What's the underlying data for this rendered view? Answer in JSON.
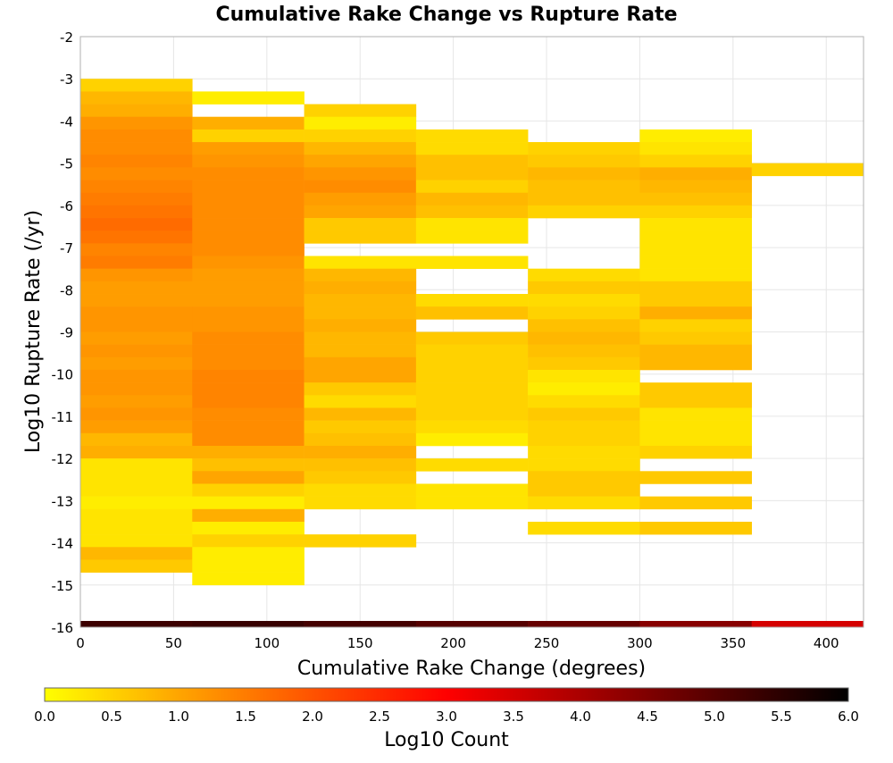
{
  "chart_data": {
    "type": "heatmap",
    "title": "Cumulative Rake Change vs Rupture Rate",
    "xlabel": "Cumulative Rake Change (degrees)",
    "ylabel": "Log10 Rupture Rate (/yr)",
    "xlim": [
      0,
      420
    ],
    "ylim": [
      -16,
      -2
    ],
    "x_ticks": [
      0,
      50,
      100,
      150,
      200,
      250,
      300,
      350,
      400
    ],
    "y_ticks": [
      -2,
      -3,
      -4,
      -5,
      -6,
      -7,
      -8,
      -9,
      -10,
      -11,
      -12,
      -13,
      -14,
      -15,
      -16
    ],
    "grid": true,
    "x_bin_width": 60,
    "y_bin_height": 0.3,
    "value_label": "Log10 Count",
    "colorbar": {
      "label": "Log10 Count",
      "min": 0.0,
      "max": 6.0,
      "ticks": [
        "0.0",
        "0.5",
        "1.0",
        "1.5",
        "2.0",
        "2.5",
        "3.0",
        "3.5",
        "4.0",
        "4.5",
        "5.0",
        "5.5",
        "6.0"
      ],
      "colors": [
        "#ffff00",
        "#ffa500",
        "#ff0000",
        "#000000"
      ],
      "placement": "bottom"
    },
    "columns": [
      {
        "x_start": 0,
        "bins": [
          {
            "y_start": -3.3,
            "value": 0.5
          },
          {
            "y_start": -3.6,
            "value": 0.8
          },
          {
            "y_start": -3.9,
            "value": 0.9
          },
          {
            "y_start": -4.2,
            "value": 1.2
          },
          {
            "y_start": -4.5,
            "value": 1.3
          },
          {
            "y_start": -4.8,
            "value": 1.3
          },
          {
            "y_start": -5.1,
            "value": 1.4
          },
          {
            "y_start": -5.4,
            "value": 1.3
          },
          {
            "y_start": -5.7,
            "value": 1.4
          },
          {
            "y_start": -6.0,
            "value": 1.5
          },
          {
            "y_start": -6.3,
            "value": 1.6
          },
          {
            "y_start": -6.6,
            "value": 1.7
          },
          {
            "y_start": -6.9,
            "value": 1.6
          },
          {
            "y_start": -7.2,
            "value": 1.4
          },
          {
            "y_start": -7.5,
            "value": 1.5
          },
          {
            "y_start": -7.8,
            "value": 1.2
          },
          {
            "y_start": -8.1,
            "value": 1.1
          },
          {
            "y_start": -8.4,
            "value": 1.1
          },
          {
            "y_start": -8.7,
            "value": 1.2
          },
          {
            "y_start": -9.0,
            "value": 1.2
          },
          {
            "y_start": -9.3,
            "value": 1.1
          },
          {
            "y_start": -9.6,
            "value": 1.2
          },
          {
            "y_start": -9.9,
            "value": 1.1
          },
          {
            "y_start": -10.2,
            "value": 1.2
          },
          {
            "y_start": -10.5,
            "value": 1.2
          },
          {
            "y_start": -10.8,
            "value": 1.1
          },
          {
            "y_start": -11.1,
            "value": 1.2
          },
          {
            "y_start": -11.4,
            "value": 1.1
          },
          {
            "y_start": -11.7,
            "value": 0.8
          },
          {
            "y_start": -12.0,
            "value": 0.9
          },
          {
            "y_start": -12.3,
            "value": 0.3
          },
          {
            "y_start": -12.6,
            "value": 0.3
          },
          {
            "y_start": -12.9,
            "value": 0.3
          },
          {
            "y_start": -13.2,
            "value": 0.2
          },
          {
            "y_start": -13.5,
            "value": 0.3
          },
          {
            "y_start": -13.8,
            "value": 0.3
          },
          {
            "y_start": -14.1,
            "value": 0.3
          },
          {
            "y_start": -14.4,
            "value": 0.8
          },
          {
            "y_start": -14.7,
            "value": 0.6
          }
        ]
      },
      {
        "x_start": 60,
        "bins": [
          {
            "y_start": -3.6,
            "value": 0.2
          },
          {
            "y_start": -4.2,
            "value": 0.9
          },
          {
            "y_start": -4.5,
            "value": 0.5
          },
          {
            "y_start": -4.8,
            "value": 1.1
          },
          {
            "y_start": -5.1,
            "value": 1.2
          },
          {
            "y_start": -5.4,
            "value": 1.3
          },
          {
            "y_start": -5.7,
            "value": 1.3
          },
          {
            "y_start": -6.0,
            "value": 1.3
          },
          {
            "y_start": -6.3,
            "value": 1.3
          },
          {
            "y_start": -6.6,
            "value": 1.3
          },
          {
            "y_start": -6.9,
            "value": 1.3
          },
          {
            "y_start": -7.2,
            "value": 1.3
          },
          {
            "y_start": -7.5,
            "value": 1.2
          },
          {
            "y_start": -7.8,
            "value": 1.1
          },
          {
            "y_start": -8.1,
            "value": 1.1
          },
          {
            "y_start": -8.4,
            "value": 1.1
          },
          {
            "y_start": -8.7,
            "value": 1.2
          },
          {
            "y_start": -9.0,
            "value": 1.2
          },
          {
            "y_start": -9.3,
            "value": 1.3
          },
          {
            "y_start": -9.6,
            "value": 1.3
          },
          {
            "y_start": -9.9,
            "value": 1.3
          },
          {
            "y_start": -10.2,
            "value": 1.4
          },
          {
            "y_start": -10.5,
            "value": 1.4
          },
          {
            "y_start": -10.8,
            "value": 1.4
          },
          {
            "y_start": -11.1,
            "value": 1.3
          },
          {
            "y_start": -11.4,
            "value": 1.3
          },
          {
            "y_start": -11.7,
            "value": 1.3
          },
          {
            "y_start": -12.0,
            "value": 0.9
          },
          {
            "y_start": -12.3,
            "value": 0.7
          },
          {
            "y_start": -12.6,
            "value": 1.0
          },
          {
            "y_start": -12.9,
            "value": 0.5
          },
          {
            "y_start": -13.2,
            "value": 0.2
          },
          {
            "y_start": -13.5,
            "value": 0.9
          },
          {
            "y_start": -13.8,
            "value": 0.2
          },
          {
            "y_start": -14.1,
            "value": 0.5
          },
          {
            "y_start": -14.4,
            "value": 0.2
          },
          {
            "y_start": -14.7,
            "value": 0.2
          },
          {
            "y_start": -15.0,
            "value": 0.2
          }
        ]
      },
      {
        "x_start": 120,
        "bins": [
          {
            "y_start": -3.9,
            "value": 0.5
          },
          {
            "y_start": -4.2,
            "value": 0.2
          },
          {
            "y_start": -4.5,
            "value": 0.5
          },
          {
            "y_start": -4.8,
            "value": 0.8
          },
          {
            "y_start": -5.1,
            "value": 1.0
          },
          {
            "y_start": -5.4,
            "value": 1.2
          },
          {
            "y_start": -5.7,
            "value": 1.3
          },
          {
            "y_start": -6.0,
            "value": 1.1
          },
          {
            "y_start": -6.3,
            "value": 1.0
          },
          {
            "y_start": -6.6,
            "value": 0.6
          },
          {
            "y_start": -6.9,
            "value": 0.6
          },
          {
            "y_start": -7.5,
            "value": 0.3
          },
          {
            "y_start": -7.8,
            "value": 0.8
          },
          {
            "y_start": -8.1,
            "value": 0.9
          },
          {
            "y_start": -8.4,
            "value": 0.8
          },
          {
            "y_start": -8.7,
            "value": 0.8
          },
          {
            "y_start": -9.0,
            "value": 0.9
          },
          {
            "y_start": -9.3,
            "value": 0.8
          },
          {
            "y_start": -9.6,
            "value": 0.8
          },
          {
            "y_start": -9.9,
            "value": 1.0
          },
          {
            "y_start": -10.2,
            "value": 1.0
          },
          {
            "y_start": -10.5,
            "value": 0.6
          },
          {
            "y_start": -10.8,
            "value": 0.4
          },
          {
            "y_start": -11.1,
            "value": 0.8
          },
          {
            "y_start": -11.4,
            "value": 0.6
          },
          {
            "y_start": -11.7,
            "value": 0.7
          },
          {
            "y_start": -12.0,
            "value": 0.9
          },
          {
            "y_start": -12.3,
            "value": 0.7
          },
          {
            "y_start": -12.6,
            "value": 0.6
          },
          {
            "y_start": -12.9,
            "value": 0.4
          },
          {
            "y_start": -13.2,
            "value": 0.4
          },
          {
            "y_start": -14.1,
            "value": 0.5
          }
        ]
      },
      {
        "x_start": 180,
        "bins": [
          {
            "y_start": -4.5,
            "value": 0.4
          },
          {
            "y_start": -4.8,
            "value": 0.4
          },
          {
            "y_start": -5.1,
            "value": 0.7
          },
          {
            "y_start": -5.4,
            "value": 0.7
          },
          {
            "y_start": -5.7,
            "value": 0.5
          },
          {
            "y_start": -6.0,
            "value": 0.8
          },
          {
            "y_start": -6.3,
            "value": 0.7
          },
          {
            "y_start": -6.6,
            "value": 0.3
          },
          {
            "y_start": -6.9,
            "value": 0.3
          },
          {
            "y_start": -7.5,
            "value": 0.3
          },
          {
            "y_start": -8.4,
            "value": 0.4
          },
          {
            "y_start": -8.7,
            "value": 0.7
          },
          {
            "y_start": -9.3,
            "value": 0.6
          },
          {
            "y_start": -9.6,
            "value": 0.5
          },
          {
            "y_start": -9.9,
            "value": 0.5
          },
          {
            "y_start": -10.2,
            "value": 0.5
          },
          {
            "y_start": -10.5,
            "value": 0.5
          },
          {
            "y_start": -10.8,
            "value": 0.5
          },
          {
            "y_start": -11.1,
            "value": 0.5
          },
          {
            "y_start": -11.4,
            "value": 0.4
          },
          {
            "y_start": -11.7,
            "value": 0.2
          },
          {
            "y_start": -12.3,
            "value": 0.4
          },
          {
            "y_start": -12.9,
            "value": 0.3
          },
          {
            "y_start": -13.2,
            "value": 0.3
          }
        ]
      },
      {
        "x_start": 240,
        "bins": [
          {
            "y_start": -4.8,
            "value": 0.5
          },
          {
            "y_start": -5.1,
            "value": 0.6
          },
          {
            "y_start": -5.4,
            "value": 0.8
          },
          {
            "y_start": -5.7,
            "value": 0.7
          },
          {
            "y_start": -6.0,
            "value": 0.7
          },
          {
            "y_start": -6.3,
            "value": 0.5
          },
          {
            "y_start": -7.8,
            "value": 0.4
          },
          {
            "y_start": -8.1,
            "value": 0.6
          },
          {
            "y_start": -8.4,
            "value": 0.4
          },
          {
            "y_start": -8.7,
            "value": 0.5
          },
          {
            "y_start": -9.0,
            "value": 0.7
          },
          {
            "y_start": -9.3,
            "value": 0.8
          },
          {
            "y_start": -9.6,
            "value": 0.7
          },
          {
            "y_start": -9.9,
            "value": 0.6
          },
          {
            "y_start": -10.2,
            "value": 0.3
          },
          {
            "y_start": -10.5,
            "value": 0.2
          },
          {
            "y_start": -10.8,
            "value": 0.4
          },
          {
            "y_start": -11.1,
            "value": 0.6
          },
          {
            "y_start": -11.4,
            "value": 0.5
          },
          {
            "y_start": -11.7,
            "value": 0.5
          },
          {
            "y_start": -12.0,
            "value": 0.4
          },
          {
            "y_start": -12.3,
            "value": 0.4
          },
          {
            "y_start": -12.6,
            "value": 0.6
          },
          {
            "y_start": -12.9,
            "value": 0.6
          },
          {
            "y_start": -13.2,
            "value": 0.4
          },
          {
            "y_start": -13.8,
            "value": 0.4
          }
        ]
      },
      {
        "x_start": 300,
        "bins": [
          {
            "y_start": -4.5,
            "value": 0.2
          },
          {
            "y_start": -4.8,
            "value": 0.3
          },
          {
            "y_start": -5.1,
            "value": 0.5
          },
          {
            "y_start": -5.4,
            "value": 0.9
          },
          {
            "y_start": -5.7,
            "value": 0.8
          },
          {
            "y_start": -6.0,
            "value": 0.7
          },
          {
            "y_start": -6.3,
            "value": 0.5
          },
          {
            "y_start": -6.6,
            "value": 0.3
          },
          {
            "y_start": -6.9,
            "value": 0.3
          },
          {
            "y_start": -7.2,
            "value": 0.3
          },
          {
            "y_start": -7.5,
            "value": 0.3
          },
          {
            "y_start": -7.8,
            "value": 0.3
          },
          {
            "y_start": -8.1,
            "value": 0.6
          },
          {
            "y_start": -8.4,
            "value": 0.6
          },
          {
            "y_start": -8.7,
            "value": 0.9
          },
          {
            "y_start": -9.0,
            "value": 0.5
          },
          {
            "y_start": -9.3,
            "value": 0.6
          },
          {
            "y_start": -9.6,
            "value": 0.8
          },
          {
            "y_start": -9.9,
            "value": 0.8
          },
          {
            "y_start": -10.5,
            "value": 0.6
          },
          {
            "y_start": -10.8,
            "value": 0.6
          },
          {
            "y_start": -11.1,
            "value": 0.3
          },
          {
            "y_start": -11.4,
            "value": 0.3
          },
          {
            "y_start": -11.7,
            "value": 0.3
          },
          {
            "y_start": -12.0,
            "value": 0.5
          },
          {
            "y_start": -12.6,
            "value": 0.6
          },
          {
            "y_start": -13.2,
            "value": 0.6
          },
          {
            "y_start": -13.8,
            "value": 0.6
          }
        ]
      },
      {
        "x_start": 360,
        "bins": [
          {
            "y_start": -5.3,
            "value": 0.5
          }
        ]
      }
    ],
    "bottom_strip": [
      {
        "x_start": 0,
        "x_end": 60,
        "value": 5.3
      },
      {
        "x_start": 60,
        "x_end": 120,
        "value": 5.35
      },
      {
        "x_start": 120,
        "x_end": 180,
        "value": 5.2
      },
      {
        "x_start": 180,
        "x_end": 240,
        "value": 5.0
      },
      {
        "x_start": 240,
        "x_end": 300,
        "value": 4.8
      },
      {
        "x_start": 300,
        "x_end": 360,
        "value": 4.4
      },
      {
        "x_start": 360,
        "x_end": 420,
        "value": 3.5
      }
    ]
  }
}
